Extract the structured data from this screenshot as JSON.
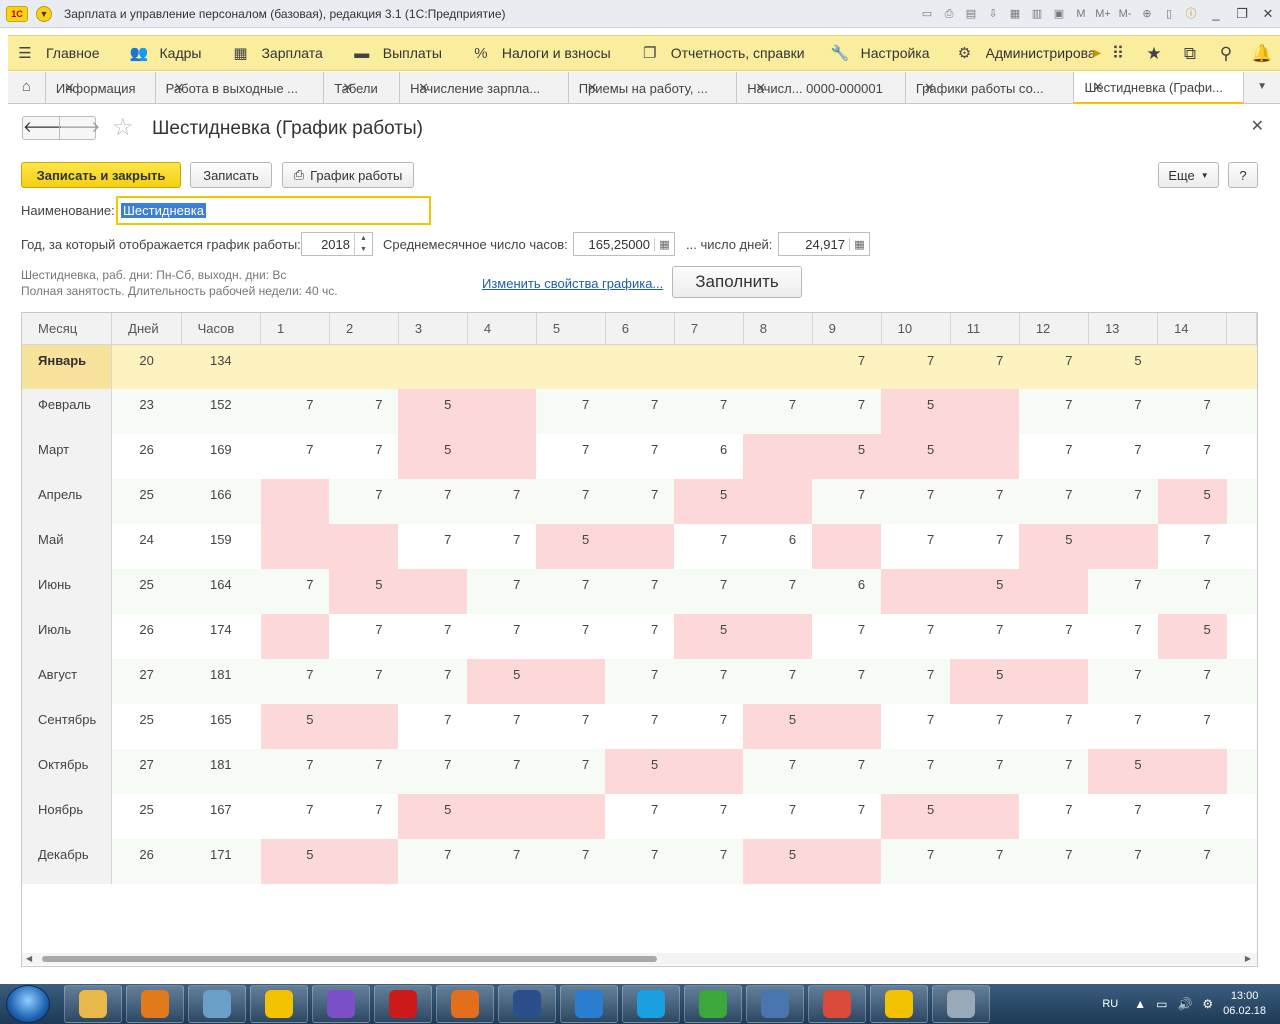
{
  "window": {
    "title": "Зарплата и управление персоналом (базовая), редакция 3.1  (1С:Предприятие)",
    "logo": "1С"
  },
  "sections": [
    {
      "label": "Главное",
      "icon": "menu-icon"
    },
    {
      "label": "Кадры",
      "icon": "people-icon"
    },
    {
      "label": "Зарплата",
      "icon": "calculator-icon"
    },
    {
      "label": "Выплаты",
      "icon": "money-icon"
    },
    {
      "label": "Налоги и взносы",
      "icon": "percent-icon"
    },
    {
      "label": "Отчетность, справки",
      "icon": "report-icon"
    },
    {
      "label": "Настройка",
      "icon": "wrench-icon"
    },
    {
      "label": "Администрирован",
      "icon": "gear-icon"
    }
  ],
  "tabs": [
    {
      "label": "Информация",
      "active": false
    },
    {
      "label": "Работа в выходные ...",
      "active": false
    },
    {
      "label": "Табели",
      "active": false
    },
    {
      "label": "Начисление зарпла...",
      "active": false
    },
    {
      "label": "Приемы на работу, ...",
      "active": false
    },
    {
      "label": "Начисл...  0000-000001",
      "active": false
    },
    {
      "label": "Графики работы со...",
      "active": false
    },
    {
      "label": "Шестидневка (Графи...",
      "active": true
    }
  ],
  "form": {
    "title": "Шестидневка (График работы)",
    "buttons": {
      "save_close": "Записать и закрыть",
      "save": "Записать",
      "schedule": "График работы",
      "more": "Еще",
      "help": "?"
    },
    "name_label": "Наименование:",
    "name_value": "Шестидневка",
    "year_label": "Год, за который отображается график работы:",
    "year_value": "2018",
    "avg_hours_label": "Среднемесячное число часов:",
    "avg_hours_value": "165,25000",
    "days_label": "... число дней:",
    "days_value": "24,917",
    "info_line1": "Шестидневка, раб. дни: Пн-Сб, выходн. дни: Вс",
    "info_line2": "Полная занятость. Длительность рабочей недели: 40 чс.",
    "change_link": "Изменить свойства графика...",
    "fill_button": "Заполнить"
  },
  "table": {
    "headers": {
      "month": "Месяц",
      "days": "Дней",
      "hours": "Часов"
    },
    "day_columns": [
      "1",
      "2",
      "3",
      "4",
      "5",
      "6",
      "7",
      "8",
      "9",
      "10",
      "11",
      "12",
      "13",
      "14"
    ],
    "rows": [
      {
        "month": "Январь",
        "days": "20",
        "hours": "134",
        "d": [
          "",
          "",
          "",
          "",
          "",
          "",
          "",
          "",
          "7",
          "7",
          "7",
          "7",
          "5",
          ""
        ],
        "off": []
      },
      {
        "month": "Февраль",
        "days": "23",
        "hours": "152",
        "d": [
          "7",
          "7",
          "5",
          "",
          "7",
          "7",
          "7",
          "7",
          "7",
          "5",
          "",
          "7",
          "7",
          "7"
        ],
        "off": [
          3,
          4,
          10,
          11
        ]
      },
      {
        "month": "Март",
        "days": "26",
        "hours": "169",
        "d": [
          "7",
          "7",
          "5",
          "",
          "7",
          "7",
          "6",
          "",
          "5",
          "5",
          "",
          "7",
          "7",
          "7"
        ],
        "off": [
          3,
          4,
          8,
          9,
          10,
          11
        ]
      },
      {
        "month": "Апрель",
        "days": "25",
        "hours": "166",
        "d": [
          "",
          "7",
          "7",
          "7",
          "7",
          "7",
          "5",
          "",
          "7",
          "7",
          "7",
          "7",
          "7",
          "5"
        ],
        "off": [
          1,
          7,
          8,
          14
        ]
      },
      {
        "month": "Май",
        "days": "24",
        "hours": "159",
        "d": [
          "",
          "",
          "7",
          "7",
          "5",
          "",
          "7",
          "6",
          "",
          "7",
          "7",
          "5",
          "",
          "7"
        ],
        "off": [
          1,
          2,
          5,
          6,
          9,
          12,
          13
        ]
      },
      {
        "month": "Июнь",
        "days": "25",
        "hours": "164",
        "d": [
          "7",
          "5",
          "",
          "7",
          "7",
          "7",
          "7",
          "7",
          "6",
          "",
          "5",
          "",
          "7",
          "7"
        ],
        "off": [
          2,
          3,
          10,
          11,
          12
        ]
      },
      {
        "month": "Июль",
        "days": "26",
        "hours": "174",
        "d": [
          "",
          "7",
          "7",
          "7",
          "7",
          "7",
          "5",
          "",
          "7",
          "7",
          "7",
          "7",
          "7",
          "5"
        ],
        "off": [
          1,
          7,
          8,
          14
        ]
      },
      {
        "month": "Август",
        "days": "27",
        "hours": "181",
        "d": [
          "7",
          "7",
          "7",
          "5",
          "",
          "7",
          "7",
          "7",
          "7",
          "7",
          "5",
          "",
          "7",
          "7"
        ],
        "off": [
          4,
          5,
          11,
          12
        ]
      },
      {
        "month": "Сентябрь",
        "days": "25",
        "hours": "165",
        "d": [
          "5",
          "",
          "7",
          "7",
          "7",
          "7",
          "7",
          "5",
          "",
          "7",
          "7",
          "7",
          "7",
          "7"
        ],
        "off": [
          1,
          2,
          8,
          9
        ]
      },
      {
        "month": "Октябрь",
        "days": "27",
        "hours": "181",
        "d": [
          "7",
          "7",
          "7",
          "7",
          "7",
          "5",
          "",
          "7",
          "7",
          "7",
          "7",
          "7",
          "5",
          ""
        ],
        "off": [
          6,
          7,
          13,
          14
        ]
      },
      {
        "month": "Ноябрь",
        "days": "25",
        "hours": "167",
        "d": [
          "7",
          "7",
          "5",
          "",
          "",
          "7",
          "7",
          "7",
          "7",
          "5",
          "",
          "7",
          "7",
          "7"
        ],
        "off": [
          3,
          4,
          5,
          10,
          11
        ]
      },
      {
        "month": "Декабрь",
        "days": "26",
        "hours": "171",
        "d": [
          "5",
          "",
          "7",
          "7",
          "7",
          "7",
          "7",
          "5",
          "",
          "7",
          "7",
          "7",
          "7",
          "7"
        ],
        "off": [
          1,
          2,
          8,
          9
        ]
      }
    ],
    "selected_row": 0
  },
  "taskbar": {
    "lang": "RU",
    "time": "13:00",
    "date": "06.02.18",
    "apps": [
      {
        "name": "explorer",
        "color": "#e8b84a"
      },
      {
        "name": "media-player",
        "color": "#e07a1c"
      },
      {
        "name": "notepad",
        "color": "#6aa0c8"
      },
      {
        "name": "1c-app",
        "color": "#f2c200"
      },
      {
        "name": "viber",
        "color": "#7d4fc7"
      },
      {
        "name": "opera",
        "color": "#cc1a1a"
      },
      {
        "name": "firefox",
        "color": "#e36f1e"
      },
      {
        "name": "floppy",
        "color": "#2b4f8a"
      },
      {
        "name": "internet-explorer",
        "color": "#2a7ed0"
      },
      {
        "name": "skype",
        "color": "#1aa0e0"
      },
      {
        "name": "icq",
        "color": "#3ca83c"
      },
      {
        "name": "network",
        "color": "#4a76b0"
      },
      {
        "name": "chrome",
        "color": "#d94a3a"
      },
      {
        "name": "1c-app-2",
        "color": "#f2c200"
      },
      {
        "name": "paint",
        "color": "#9aa9b8"
      }
    ]
  }
}
